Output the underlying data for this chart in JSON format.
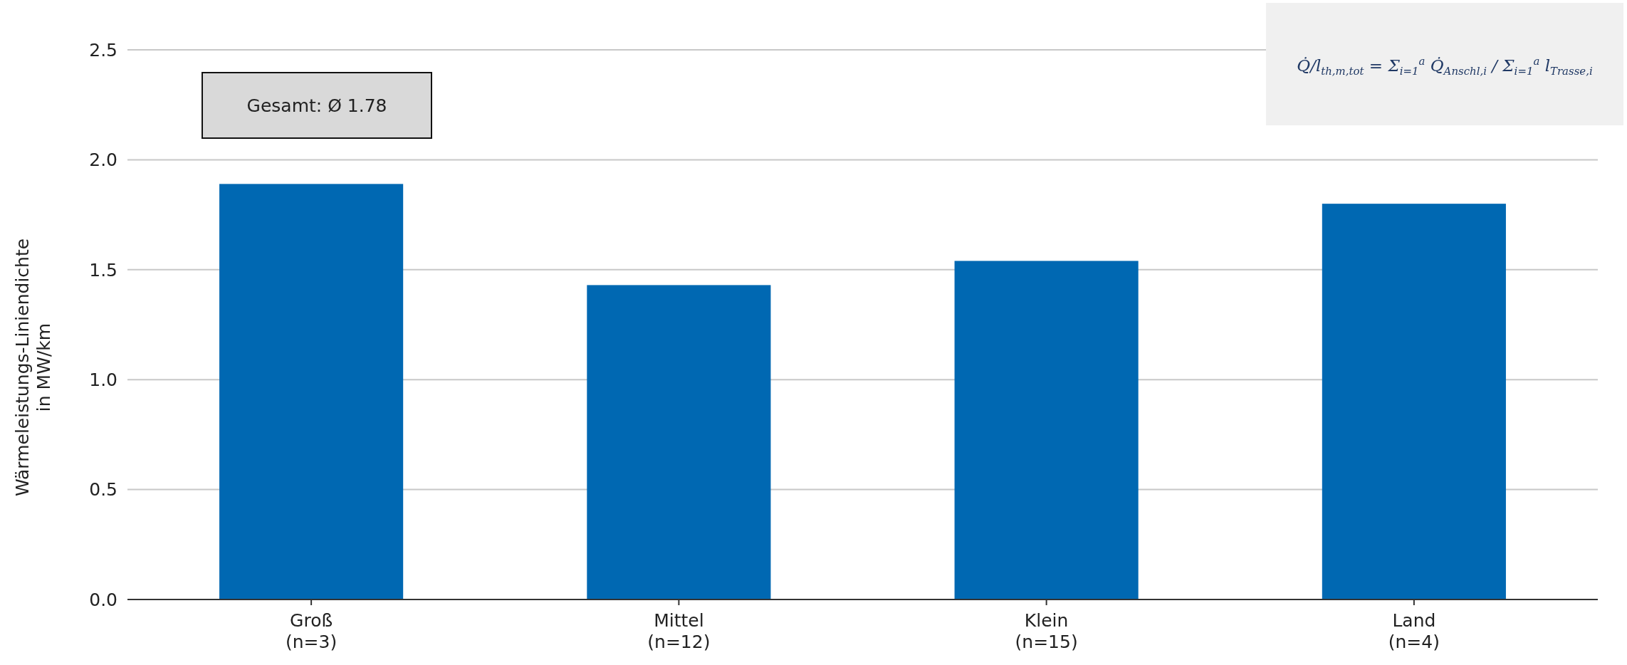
{
  "chart_data": {
    "type": "bar",
    "ylabel": "Wärmeleistungs-Liniendichte\nin MW/km",
    "categories": [
      "Groß\n(n=3)",
      "Mittel\n(n=12)",
      "Klein\n(n=15)",
      "Land\n(n=4)"
    ],
    "values": [
      1.89,
      1.43,
      1.54,
      1.8
    ],
    "color": "#0068b2",
    "ylim": [
      0,
      2.5
    ],
    "yticks": [
      {
        "value": 0,
        "label": "0.0"
      },
      {
        "value": 0.5,
        "label": "0.5"
      },
      {
        "value": 1,
        "label": "1.0"
      },
      {
        "value": 1.5,
        "label": "1.5"
      },
      {
        "value": 2,
        "label": "2.0"
      },
      {
        "value": 2.5,
        "label": "2.5"
      }
    ],
    "grid": "y",
    "annotations": [
      "Gesamt: Ø 1.78",
      "Q̇/l$_{th,m,tot}$ = Σ$_{i=1}$$^{a}$ Q̇$_{Anschl,i}$ / Σ$_{i=1}$$^{a}$ l$_{Trasse,i}$"
    ]
  }
}
